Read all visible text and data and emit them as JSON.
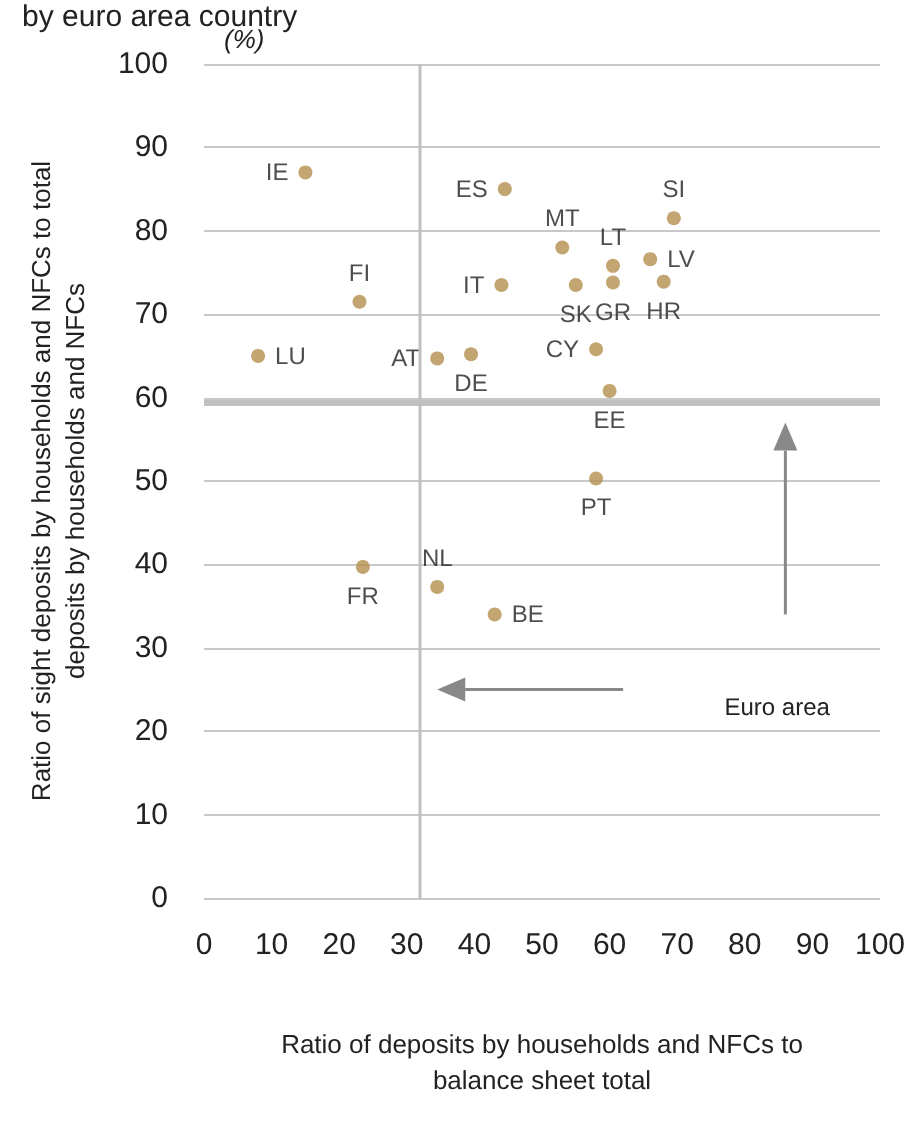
{
  "chart_data": {
    "type": "scatter",
    "title": "by euro area country",
    "xlabel": "Ratio of deposits by households and NFCs to balance sheet total",
    "ylabel": "Ratio of sight deposits by households and NFCs to total deposits by households and NFCs",
    "annotations": [
      "(%)",
      "Euro area"
    ],
    "x": [
      15,
      44.5,
      53,
      44,
      23,
      55,
      8,
      34.5,
      39.5,
      23.5,
      34.5,
      43,
      69.5,
      60.5,
      66,
      60.5,
      68,
      58,
      60,
      58
    ],
    "series": [
      {
        "color": "#b48f4f",
        "values": [
          87,
          85,
          78,
          73.5,
          71.5,
          73.5,
          65,
          64.7,
          65.2,
          39.7,
          37.3,
          34,
          81.5,
          75.8,
          76.6,
          73.8,
          73.9,
          65.8,
          60.8,
          50.3
        ],
        "value_labels": [
          "IE",
          "ES",
          "MT",
          "IT",
          "FI",
          "SK",
          "LU",
          "AT",
          "DE",
          "FR",
          "NL",
          "BE",
          "SI",
          "LT",
          "LV",
          "GR",
          "HR",
          "CY",
          "EE",
          "PT"
        ]
      }
    ],
    "xlim": [
      0,
      100
    ],
    "xticks": [
      0,
      10,
      20,
      30,
      40,
      50,
      60,
      70,
      80,
      90,
      100
    ],
    "ylim": [
      0,
      100
    ],
    "yticks": [
      0,
      10,
      20,
      30,
      40,
      50,
      60,
      70,
      80,
      90,
      100
    ],
    "ref_lines": [
      {
        "axis": "x",
        "value": 32,
        "color": "#c0c0c0"
      },
      {
        "axis": "y",
        "value": 59.5,
        "color": "#c0c0c0"
      }
    ],
    "grid": "y",
    "marker": "circle"
  }
}
